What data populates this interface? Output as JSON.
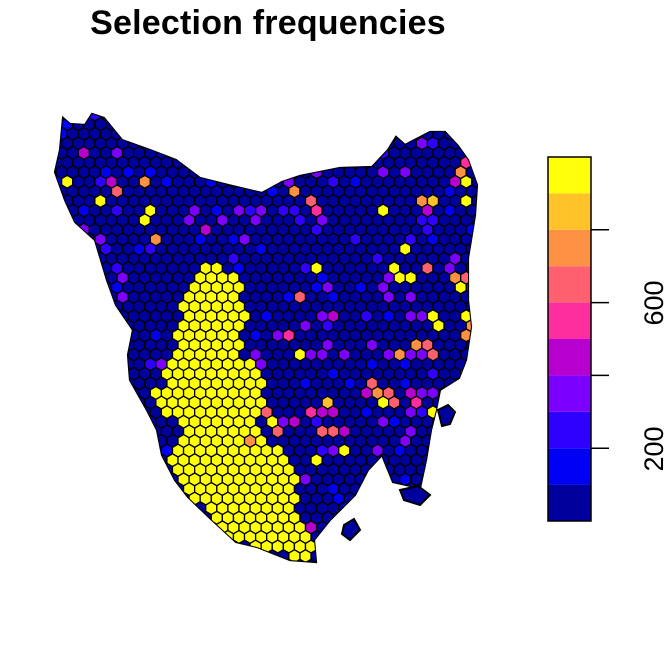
{
  "title": "Selection frequencies",
  "legend": {
    "tick_labels": [
      "200",
      "600"
    ],
    "colors": [
      "#00009C",
      "#0000F5",
      "#2E00FF",
      "#7B00FF",
      "#B700CF",
      "#FF2E9E",
      "#FF6070",
      "#FF9144",
      "#FFC228",
      "#FFFF0A"
    ],
    "min": 0,
    "max": 1000,
    "ticks": [
      200,
      400,
      600,
      800
    ]
  },
  "map": {
    "region": "Tasmania",
    "hex_stroke": "#000000",
    "base_color": "#00009C",
    "selected_color": "#FFFF0A"
  }
}
